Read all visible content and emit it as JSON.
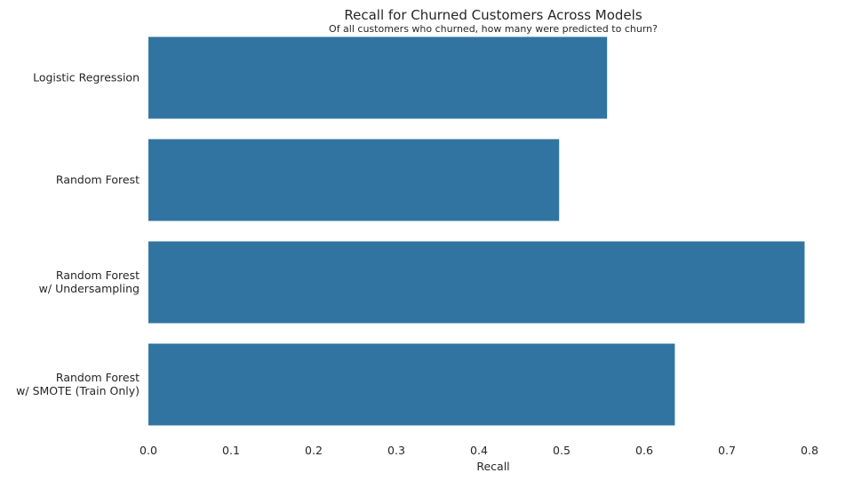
{
  "chart_data": {
    "type": "bar",
    "orientation": "horizontal",
    "title": "Recall for Churned Customers Across Models",
    "subtitle": "Of all customers who churned, how many were predicted to churn?",
    "xlabel": "Recall",
    "ylabel": "",
    "xlim": [
      0,
      0.8
    ],
    "xticks": [
      "0.0",
      "0.1",
      "0.2",
      "0.3",
      "0.4",
      "0.5",
      "0.6",
      "0.7",
      "0.8"
    ],
    "grid": false,
    "categories": [
      [
        "Logistic Regression"
      ],
      [
        "Random Forest"
      ],
      [
        "Random Forest",
        "w/ Undersampling"
      ],
      [
        "Random Forest",
        "w/ SMOTE (Train Only)"
      ]
    ],
    "values": [
      0.555,
      0.497,
      0.794,
      0.637
    ],
    "bar_color": "#3274a1"
  }
}
